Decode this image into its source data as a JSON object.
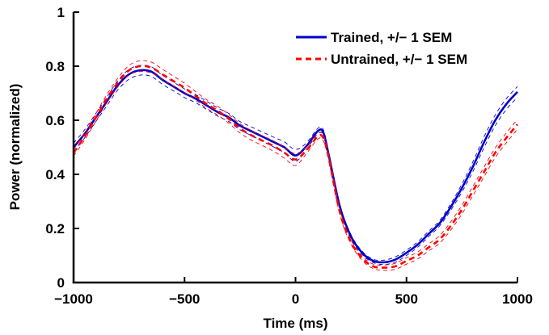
{
  "chart_data": {
    "type": "line",
    "title": "",
    "xlabel": "Time (ms)",
    "ylabel": "Power (normalized)",
    "xlim": [
      -1000,
      1000
    ],
    "ylim": [
      0,
      1
    ],
    "xticks": [
      -1000,
      -500,
      0,
      500,
      1000
    ],
    "xtick_labels": [
      "−1000",
      "−500",
      "0",
      "500",
      "1000"
    ],
    "yticks": [
      0,
      0.2,
      0.4,
      0.6,
      0.8,
      1
    ],
    "ytick_labels": [
      "0",
      "0.2",
      "0.4",
      "0.6",
      "0.8",
      "1"
    ],
    "grid": false,
    "legend_position": "top-right",
    "x": [
      -1000,
      -950,
      -900,
      -850,
      -800,
      -750,
      -700,
      -650,
      -600,
      -550,
      -500,
      -450,
      -400,
      -350,
      -300,
      -250,
      -200,
      -150,
      -100,
      -50,
      0,
      50,
      100,
      125,
      150,
      200,
      250,
      300,
      350,
      400,
      450,
      500,
      550,
      600,
      650,
      700,
      750,
      800,
      850,
      900,
      950,
      1000
    ],
    "series": [
      {
        "name": "Trained, +/− 1 SEM",
        "color": "#0000cc",
        "line_style": "solid",
        "values": [
          0.5,
          0.55,
          0.61,
          0.67,
          0.73,
          0.77,
          0.785,
          0.78,
          0.75,
          0.725,
          0.7,
          0.68,
          0.655,
          0.63,
          0.61,
          0.58,
          0.56,
          0.54,
          0.52,
          0.5,
          0.47,
          0.505,
          0.56,
          0.555,
          0.47,
          0.28,
          0.17,
          0.11,
          0.08,
          0.075,
          0.085,
          0.11,
          0.14,
          0.18,
          0.22,
          0.28,
          0.35,
          0.43,
          0.52,
          0.6,
          0.66,
          0.705
        ],
        "sem": [
          0.015,
          0.015,
          0.015,
          0.016,
          0.017,
          0.018,
          0.018,
          0.018,
          0.017,
          0.016,
          0.016,
          0.015,
          0.015,
          0.015,
          0.015,
          0.015,
          0.016,
          0.017,
          0.018,
          0.02,
          0.022,
          0.012,
          0.01,
          0.01,
          0.01,
          0.008,
          0.007,
          0.006,
          0.006,
          0.008,
          0.01,
          0.01,
          0.01,
          0.01,
          0.01,
          0.012,
          0.015,
          0.018,
          0.02,
          0.02,
          0.02,
          0.02
        ]
      },
      {
        "name": "Untrained, +/− 1 SEM",
        "color": "#ff0000",
        "line_style": "dashed",
        "values": [
          0.48,
          0.54,
          0.61,
          0.68,
          0.74,
          0.785,
          0.8,
          0.795,
          0.77,
          0.745,
          0.72,
          0.69,
          0.66,
          0.635,
          0.605,
          0.57,
          0.545,
          0.525,
          0.505,
          0.48,
          0.455,
          0.49,
          0.54,
          0.535,
          0.46,
          0.26,
          0.15,
          0.09,
          0.06,
          0.055,
          0.06,
          0.08,
          0.1,
          0.13,
          0.16,
          0.21,
          0.27,
          0.34,
          0.41,
          0.48,
          0.535,
          0.585
        ],
        "sem": [
          0.012,
          0.013,
          0.014,
          0.015,
          0.016,
          0.018,
          0.02,
          0.02,
          0.019,
          0.018,
          0.017,
          0.016,
          0.016,
          0.016,
          0.016,
          0.017,
          0.018,
          0.018,
          0.019,
          0.02,
          0.022,
          0.012,
          0.01,
          0.01,
          0.01,
          0.009,
          0.008,
          0.008,
          0.008,
          0.01,
          0.011,
          0.012,
          0.013,
          0.013,
          0.014,
          0.015,
          0.016,
          0.017,
          0.018,
          0.018,
          0.018,
          0.018
        ]
      }
    ]
  }
}
